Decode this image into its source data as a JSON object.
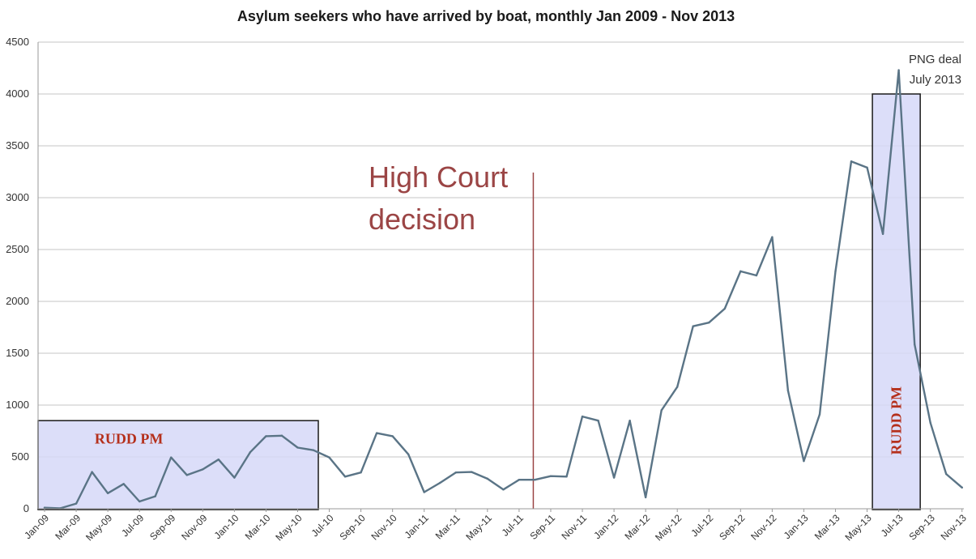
{
  "chart_data": {
    "type": "line",
    "title": "Asylum seekers who have arrived by boat, monthly Jan 2009 - Nov 2013",
    "xlabel": "",
    "ylabel": "",
    "ylim": [
      0,
      4500
    ],
    "yticks": [
      "0",
      "500",
      "1000",
      "1500",
      "2000",
      "2500",
      "3000",
      "3500",
      "4000",
      "4500"
    ],
    "grid": true,
    "x": [
      "Jan-09",
      "Feb-09",
      "Mar-09",
      "Apr-09",
      "May-09",
      "Jun-09",
      "Jul-09",
      "Aug-09",
      "Sep-09",
      "Oct-09",
      "Nov-09",
      "Dec-09",
      "Jan-10",
      "Feb-10",
      "Mar-10",
      "Apr-10",
      "May-10",
      "Jun-10",
      "Jul-10",
      "Aug-10",
      "Sep-10",
      "Oct-10",
      "Nov-10",
      "Dec-10",
      "Jan-11",
      "Feb-11",
      "Mar-11",
      "Apr-11",
      "May-11",
      "Jun-11",
      "Jul-11",
      "Aug-11",
      "Sep-11",
      "Oct-11",
      "Nov-11",
      "Dec-11",
      "Jan-12",
      "Feb-12",
      "Mar-12",
      "Apr-12",
      "May-12",
      "Jun-12",
      "Jul-12",
      "Aug-12",
      "Sep-12",
      "Oct-12",
      "Nov-12",
      "Dec-12",
      "Jan-13",
      "Feb-13",
      "Mar-13",
      "Apr-13",
      "May-13",
      "Jun-13",
      "Jul-13",
      "Aug-13",
      "Sep-13",
      "Oct-13",
      "Nov-13"
    ],
    "xtick_labels": [
      "Jan-09",
      "Mar-09",
      "May-09",
      "Jul-09",
      "Sep-09",
      "Nov-09",
      "Jan-10",
      "Mar-10",
      "May-10",
      "Jul-10",
      "Sep-10",
      "Nov-10",
      "Jan-11",
      "Mar-11",
      "May-11",
      "Jul-11",
      "Sep-11",
      "Nov-11",
      "Jan-12",
      "Mar-12",
      "May-12",
      "Jul-12",
      "Sep-12",
      "Nov-12",
      "Jan-13",
      "Mar-13",
      "May-13",
      "Jul-13",
      "Sep-13",
      "Nov-13"
    ],
    "series": [
      {
        "name": "",
        "color": "#5a7486",
        "values": [
          10,
          5,
          50,
          355,
          150,
          240,
          70,
          120,
          495,
          325,
          380,
          475,
          300,
          545,
          700,
          705,
          590,
          565,
          495,
          310,
          350,
          730,
          700,
          525,
          160,
          250,
          350,
          355,
          290,
          185,
          280,
          280,
          315,
          310,
          890,
          850,
          300,
          850,
          110,
          950,
          1175,
          1760,
          1795,
          1930,
          2290,
          2250,
          2620,
          1140,
          460,
          910,
          2290,
          3350,
          3290,
          2650,
          4230,
          1585,
          830,
          335,
          205
        ]
      }
    ],
    "annotations": [
      {
        "text_lines": [
          "High Court",
          "decision"
        ],
        "at": "Aug-11",
        "style": "vertical-line",
        "color": "#9b4545"
      },
      {
        "text_lines": [
          "PNG deal",
          "July 2013"
        ],
        "at": "Jul-13"
      }
    ],
    "highlight_boxes": [
      {
        "label": "RUDD PM",
        "from": "Jan-09",
        "to": "Jun-10",
        "y_top": 850,
        "orientation": "horizontal"
      },
      {
        "label": "RUDD PM",
        "from": "Jun-13",
        "to": "Aug-13",
        "y_top": 4000,
        "orientation": "vertical"
      }
    ],
    "colors": {
      "highlight_fill": "#d6d8f8",
      "highlight_border": "#1a1a1a",
      "rudd_text": "#b5301c",
      "grid": "#c4c4c4"
    }
  }
}
